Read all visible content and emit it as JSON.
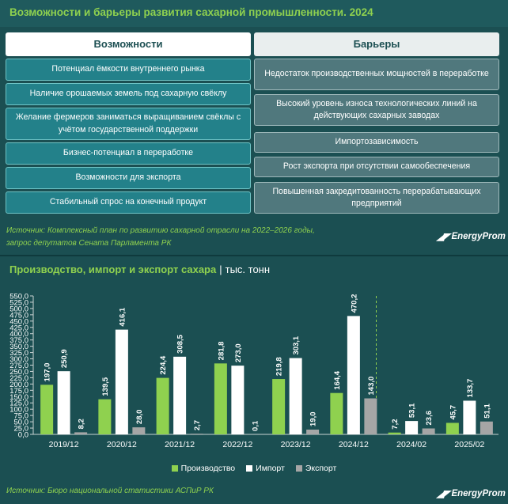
{
  "header": {
    "title": "Возможности и барьеры развития сахарной промышленности. 2024"
  },
  "opportunities": {
    "heading": "Возможности",
    "items": [
      "Потенциал ёмкости внутреннего рынка",
      "Наличие орошаемых земель под сахарную свёклу",
      "Желание фермеров заниматься выращиванием свёклы с учётом государственной поддержки",
      "Бизнес-потенциал в переработке",
      "Возможности для экспорта",
      "Стабильный спрос на конечный продукт"
    ]
  },
  "barriers": {
    "heading": "Барьеры",
    "items": [
      "Недостаток производственных мощностей в переработке",
      "Высокий уровень износа технологических линий на действующих сахарных заводах",
      "Импортозависимость",
      "Рост экспорта при отсутствии самообеспечения",
      "Повышенная закредитованность перерабатывающих предприятий"
    ]
  },
  "source_top": {
    "line1": "Источник: Комплексный план по развитию сахарной отрасли на 2022–2026 годы,",
    "line2": "запрос депутатов Сената Парламента РК"
  },
  "logo": {
    "text": "EnergyProm"
  },
  "chart_header": {
    "title": "Производство, импорт и экспорт сахара",
    "unit": "тыс. тонн"
  },
  "chart_data": {
    "type": "bar",
    "categories": [
      "2019/12",
      "2020/12",
      "2021/12",
      "2022/12",
      "2023/12",
      "2024/12",
      "2024/02",
      "2025/02"
    ],
    "series": [
      {
        "name": "Производство",
        "color": "#8fd14f",
        "values": [
          197.0,
          139.5,
          224.4,
          281.8,
          219.8,
          164.4,
          7.2,
          45.7
        ]
      },
      {
        "name": "Импорт",
        "color": "#ffffff",
        "values": [
          250.9,
          416.1,
          308.5,
          273.0,
          303.1,
          470.2,
          53.1,
          133.7
        ]
      },
      {
        "name": "Экспорт",
        "color": "#a6a6a6",
        "values": [
          8.2,
          28.0,
          2.7,
          0.1,
          19.0,
          143.0,
          23.6,
          51.1
        ]
      }
    ],
    "labels": [
      [
        "197,0",
        "139,5",
        "224,4",
        "281,8",
        "219,8",
        "164,4",
        "7,2",
        "45,7"
      ],
      [
        "250,9",
        "416,1",
        "308,5",
        "273,0",
        "303,1",
        "470,2",
        "53,1",
        "133,7"
      ],
      [
        "8,2",
        "28,0",
        "2,7",
        "0,1",
        "19,0",
        "143,0",
        "23,6",
        "51,1"
      ]
    ],
    "yticks": [
      "0,0",
      "25,0",
      "50,0",
      "75,0",
      "100,0",
      "125,0",
      "150,0",
      "175,0",
      "200,0",
      "225,0",
      "250,0",
      "275,0",
      "300,0",
      "325,0",
      "350,0",
      "375,0",
      "400,0",
      "425,0",
      "450,0",
      "475,0",
      "500,0",
      "525,0",
      "550,0"
    ],
    "ylim": [
      0,
      550
    ],
    "ystep": 25,
    "legend_position": "bottom",
    "grid": false
  },
  "source_bottom": {
    "text": "Источник: Бюро национальной статистики АСПиР РК"
  }
}
